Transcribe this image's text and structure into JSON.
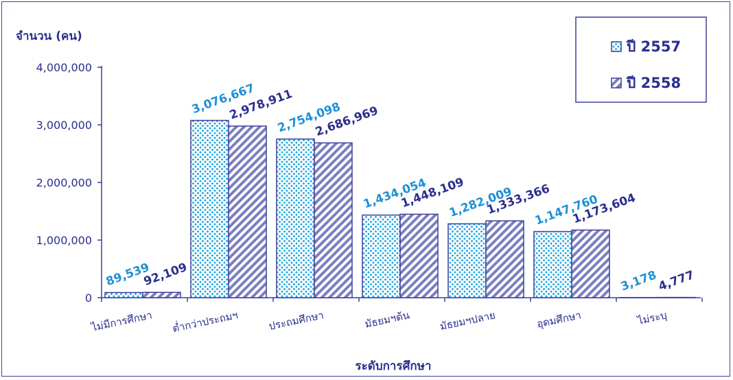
{
  "chart_data": {
    "type": "bar",
    "ylabel": "จำนวน (คน)",
    "xlabel": "ระดับการศึกษา",
    "categories": [
      "ไม่มีการศึกษา",
      "ต่ำกว่าประถมฯ",
      "ประถมศึกษา",
      "มัธยมฯต้น",
      "มัธยมฯปลาย",
      "อุดมศึกษา",
      "ไม่ระบุ"
    ],
    "ylim": [
      0,
      4000000
    ],
    "yticks": [
      0,
      1000000,
      2000000,
      3000000,
      4000000
    ],
    "ytick_labels": [
      "0",
      "1,000,000",
      "2,000,000",
      "3,000,000",
      "4,000,000"
    ],
    "grid": false,
    "legend_position": "top-right",
    "series": [
      {
        "name": "ปี 2557",
        "values": [
          89539,
          3076667,
          2754098,
          1434054,
          1282009,
          1147760,
          3178
        ],
        "labels": [
          "89,539",
          "3,076,667",
          "2,754,098",
          "1,434,054",
          "1,282,009",
          "1,147,760",
          "3,178"
        ],
        "color": "#29a9e0",
        "pattern": "dots"
      },
      {
        "name": "ปี 2558",
        "values": [
          92109,
          2978911,
          2686969,
          1448109,
          1333366,
          1173604,
          4777
        ],
        "labels": [
          "92,109",
          "2,978,911",
          "2,686,969",
          "1,448,109",
          "1,333,366",
          "1,173,604",
          "4,777"
        ],
        "color": "#7b7fbf",
        "pattern": "diagonal-stripes"
      }
    ]
  },
  "colors": {
    "axis": "#3b3f9a",
    "text": "#2b2f8f",
    "label_2557": "#1e90d6",
    "label_2558": "#2b2f8f",
    "bar_border": "#3b3f9a"
  }
}
